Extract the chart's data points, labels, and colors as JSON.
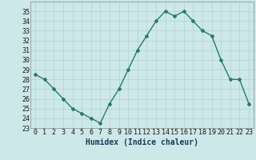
{
  "x": [
    0,
    1,
    2,
    3,
    4,
    5,
    6,
    7,
    8,
    9,
    10,
    11,
    12,
    13,
    14,
    15,
    16,
    17,
    18,
    19,
    20,
    21,
    22,
    23
  ],
  "y": [
    28.5,
    28.0,
    27.0,
    26.0,
    25.0,
    24.5,
    24.0,
    23.5,
    25.5,
    27.0,
    29.0,
    31.0,
    32.5,
    34.0,
    35.0,
    34.5,
    35.0,
    34.0,
    33.0,
    32.5,
    30.0,
    28.0,
    28.0,
    25.5
  ],
  "xlabel": "Humidex (Indice chaleur)",
  "ylim": [
    23,
    36
  ],
  "xlim": [
    -0.5,
    23.5
  ],
  "yticks": [
    23,
    24,
    25,
    26,
    27,
    28,
    29,
    30,
    31,
    32,
    33,
    34,
    35
  ],
  "xticks": [
    0,
    1,
    2,
    3,
    4,
    5,
    6,
    7,
    8,
    9,
    10,
    11,
    12,
    13,
    14,
    15,
    16,
    17,
    18,
    19,
    20,
    21,
    22,
    23
  ],
  "line_color": "#2a7a6a",
  "marker": "D",
  "marker_size": 2.0,
  "bg_color": "#cce8e8",
  "grid_color": "#b8d4d4",
  "xlabel_fontsize": 7,
  "tick_fontsize": 6,
  "line_width": 1.0
}
